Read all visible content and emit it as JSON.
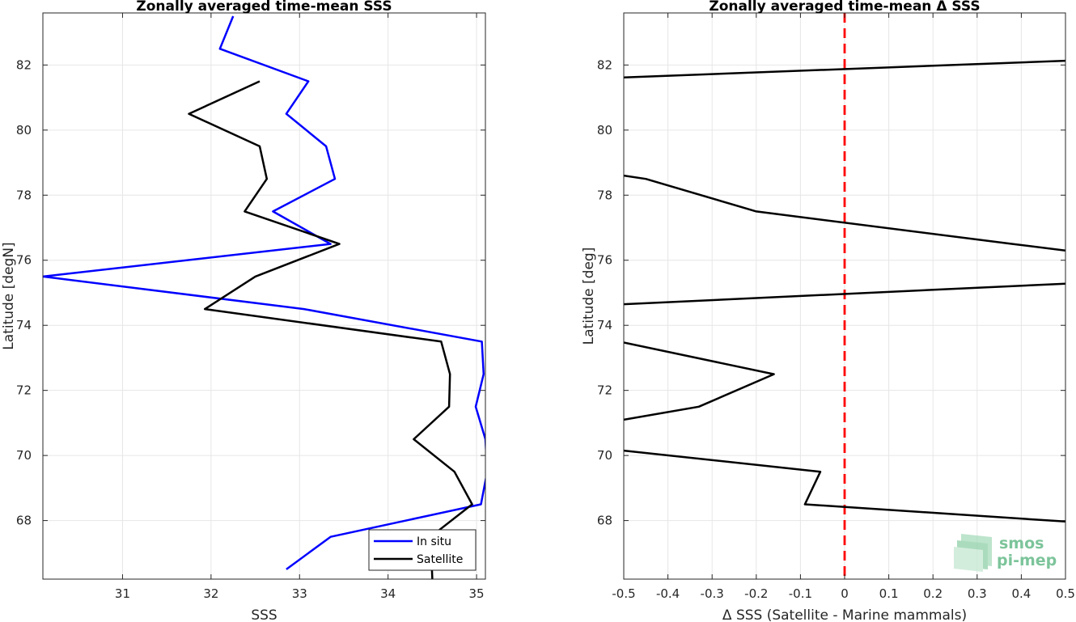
{
  "chart_data": [
    {
      "type": "line",
      "title": "Zonally averaged time-mean SSS",
      "xlabel": "SSS",
      "ylabel": "Latitude [degN]",
      "xlim": [
        30.1,
        35.1
      ],
      "ylim": [
        66.2,
        83.6
      ],
      "xticks": [
        31,
        32,
        33,
        34,
        35
      ],
      "yticks": [
        68,
        70,
        72,
        74,
        76,
        78,
        80,
        82
      ],
      "grid": true,
      "legend_position": "bottom-right",
      "series": [
        {
          "name": "In situ",
          "color": "#0000ff",
          "points": [
            [
              32.85,
              66.5
            ],
            [
              33.35,
              67.5
            ],
            [
              35.05,
              68.5
            ],
            [
              35.12,
              69.5
            ],
            [
              35.1,
              70.5
            ],
            [
              34.99,
              71.5
            ],
            [
              35.08,
              72.5
            ],
            [
              35.06,
              73.5
            ],
            [
              33.05,
              74.5
            ],
            [
              30.1,
              75.5
            ],
            [
              33.35,
              76.5
            ],
            [
              32.7,
              77.5
            ],
            [
              33.4,
              78.5
            ],
            [
              33.3,
              79.5
            ],
            [
              32.85,
              80.5
            ],
            [
              33.1,
              81.5
            ],
            [
              32.1,
              82.5
            ],
            [
              32.25,
              83.5
            ]
          ]
        },
        {
          "name": "Satellite",
          "color": "#000000",
          "points": [
            [
              34.5,
              66.2
            ],
            [
              34.48,
              67.5
            ],
            [
              34.95,
              68.5
            ],
            [
              34.75,
              69.5
            ],
            [
              34.29,
              70.5
            ],
            [
              34.69,
              71.5
            ],
            [
              34.7,
              72.5
            ],
            [
              34.6,
              73.5
            ],
            [
              31.93,
              74.5
            ],
            [
              32.5,
              75.5
            ],
            [
              33.45,
              76.5
            ],
            [
              32.38,
              77.5
            ],
            [
              32.63,
              78.5
            ],
            [
              32.55,
              79.5
            ],
            [
              31.75,
              80.5
            ],
            [
              32.55,
              81.5
            ]
          ]
        }
      ]
    },
    {
      "type": "line",
      "title": "Zonally averaged time-mean Δ SSS",
      "xlabel": "Δ SSS (Satellite - Marine mammals)",
      "ylabel": "Latitude [deg]",
      "xlim": [
        -0.5,
        0.5
      ],
      "ylim": [
        66.2,
        83.6
      ],
      "xticks": [
        -0.5,
        -0.4,
        -0.3,
        -0.2,
        -0.1,
        0,
        0.1,
        0.2,
        0.3,
        0.4,
        0.5
      ],
      "yticks": [
        68,
        70,
        72,
        74,
        76,
        78,
        80,
        82
      ],
      "grid": true,
      "reference_line": {
        "x": 0,
        "color": "#ff0000",
        "style": "dashed"
      },
      "series": [
        {
          "color": "#000000",
          "segments": [
            [
              [
                -0.5,
                81.62
              ],
              [
                0.5,
                82.13
              ]
            ],
            [
              [
                -0.5,
                78.6
              ],
              [
                -0.45,
                78.5
              ],
              [
                -0.2,
                77.5
              ],
              [
                0.38,
                76.5
              ],
              [
                0.5,
                76.3
              ]
            ],
            [
              [
                -0.5,
                74.65
              ],
              [
                0.5,
                75.28
              ]
            ],
            [
              [
                -0.5,
                73.47
              ],
              [
                -0.16,
                72.5
              ],
              [
                -0.33,
                71.5
              ],
              [
                -0.5,
                71.1
              ]
            ],
            [
              [
                -0.5,
                70.15
              ],
              [
                -0.055,
                69.5
              ],
              [
                -0.09,
                68.5
              ],
              [
                0.5,
                67.97
              ]
            ]
          ]
        }
      ]
    }
  ],
  "logo": {
    "line1": "smos",
    "line2": "pi-mep",
    "color": "#7cc49a"
  }
}
